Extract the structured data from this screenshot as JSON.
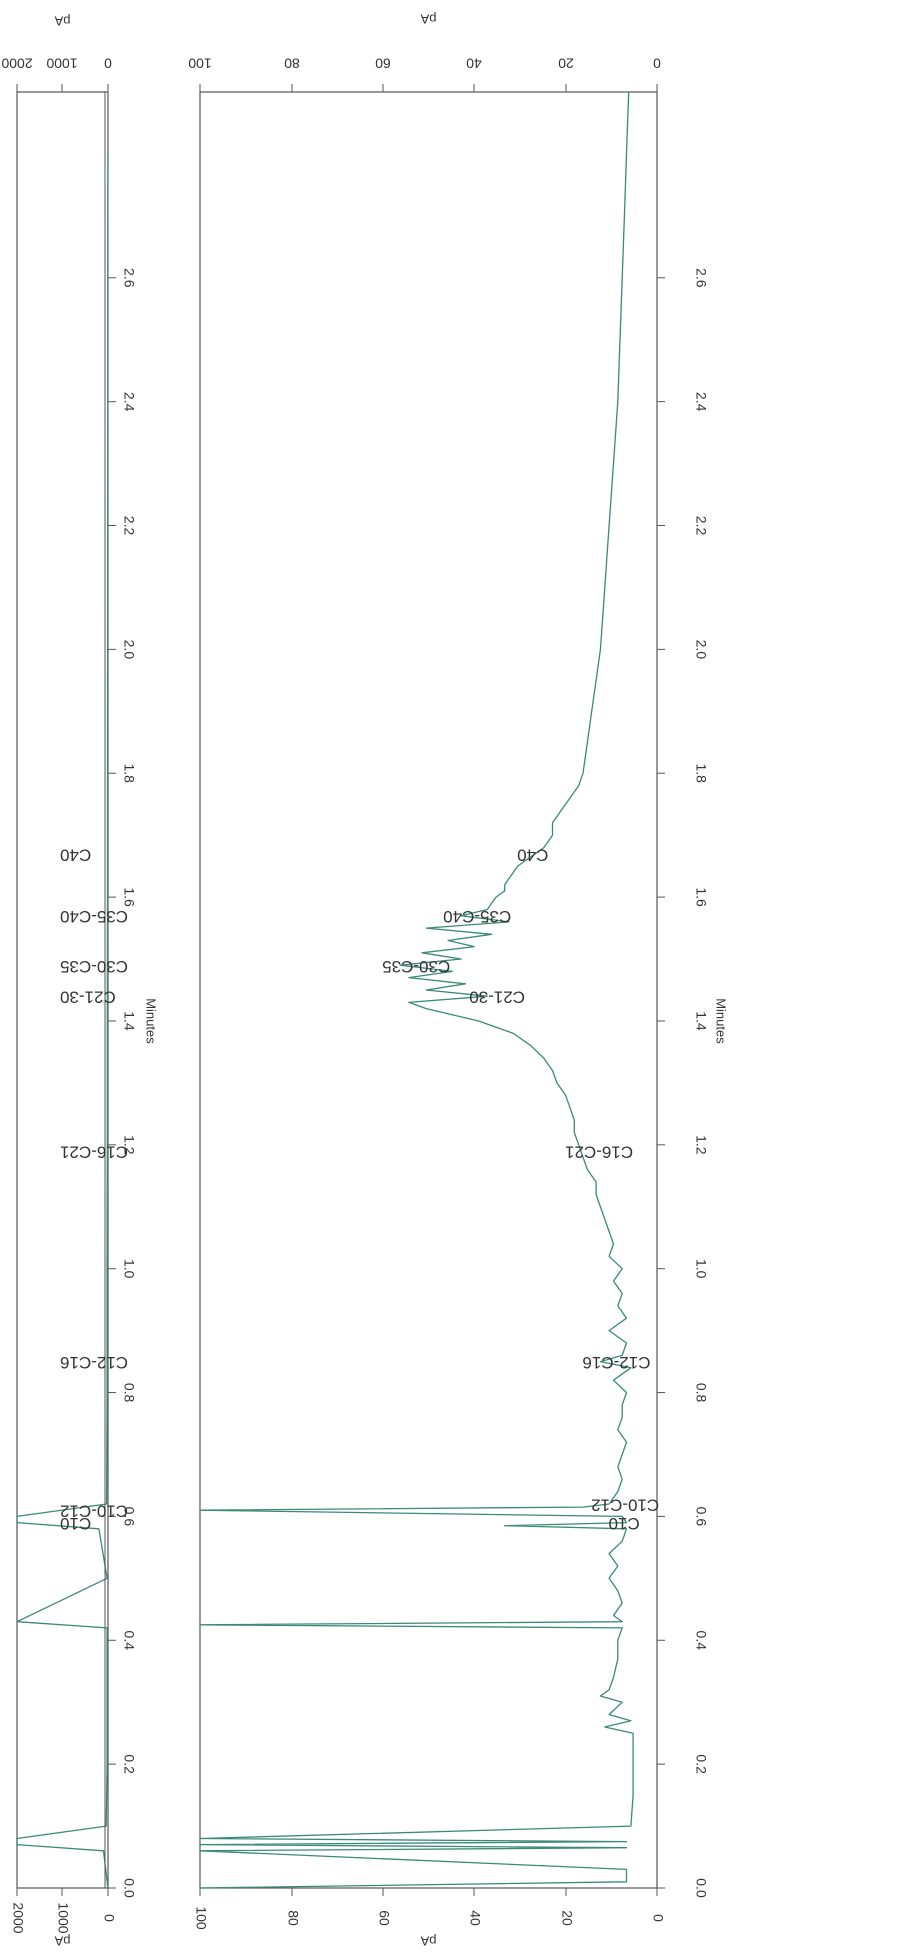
{
  "chart_data": [
    {
      "type": "line",
      "panel": "top",
      "orientation": "rotated 90°, time axis vertical",
      "x": [
        0.0,
        0.06,
        0.07,
        0.08,
        0.1,
        0.2,
        0.3,
        0.42,
        0.43,
        0.5,
        0.58,
        0.59,
        0.6,
        0.62,
        0.8,
        1.0,
        1.2,
        1.4,
        1.6,
        1.8,
        2.0,
        2.2,
        2.4,
        2.6,
        2.8
      ],
      "values": [
        2,
        100,
        2000,
        2000,
        40,
        20,
        20,
        20,
        2000,
        20,
        200,
        2000,
        2000,
        30,
        20,
        20,
        15,
        15,
        12,
        10,
        8,
        6,
        5,
        4,
        3
      ],
      "xlabel": "Minutes",
      "ylabel": "pA",
      "xlim": [
        0,
        2.9
      ],
      "ylim": [
        0,
        2000
      ],
      "xticks": [
        "0.0",
        "0.2",
        "0.4",
        "0.6",
        "0.8",
        "1.0",
        "1.2",
        "1.4",
        "1.6",
        "1.8",
        "2.0",
        "2.2",
        "2.4",
        "2.6"
      ],
      "yticks": [
        "0",
        "1000",
        "2000"
      ],
      "annotations": [
        {
          "text": "C10",
          "x": 0.59
        },
        {
          "text": "C10-C12",
          "x": 0.61
        },
        {
          "text": "C12-C16",
          "x": 0.85
        },
        {
          "text": "C16-C21",
          "x": 1.19
        },
        {
          "text": "C21-30",
          "x": 1.44
        },
        {
          "text": "C30-C35",
          "x": 1.49
        },
        {
          "text": "C35-C40",
          "x": 1.57
        },
        {
          "text": "C40",
          "x": 1.67
        }
      ]
    },
    {
      "type": "line",
      "panel": "bottom",
      "orientation": "rotated 90°, time axis vertical",
      "x": [
        0.0,
        0.01,
        0.03,
        0.06,
        0.065,
        0.07,
        0.075,
        0.08,
        0.1,
        0.15,
        0.2,
        0.25,
        0.26,
        0.27,
        0.28,
        0.3,
        0.31,
        0.32,
        0.34,
        0.37,
        0.4,
        0.42,
        0.425,
        0.43,
        0.44,
        0.46,
        0.48,
        0.5,
        0.52,
        0.54,
        0.56,
        0.58,
        0.585,
        0.59,
        0.6,
        0.61,
        0.615,
        0.62,
        0.64,
        0.66,
        0.68,
        0.7,
        0.72,
        0.74,
        0.76,
        0.78,
        0.8,
        0.82,
        0.84,
        0.85,
        0.86,
        0.88,
        0.9,
        0.92,
        0.94,
        0.96,
        0.98,
        1.0,
        1.02,
        1.04,
        1.06,
        1.08,
        1.1,
        1.12,
        1.14,
        1.16,
        1.18,
        1.2,
        1.22,
        1.24,
        1.26,
        1.28,
        1.3,
        1.32,
        1.34,
        1.36,
        1.38,
        1.4,
        1.42,
        1.43,
        1.44,
        1.45,
        1.46,
        1.47,
        1.48,
        1.49,
        1.5,
        1.51,
        1.52,
        1.53,
        1.54,
        1.55,
        1.56,
        1.57,
        1.58,
        1.59,
        1.6,
        1.61,
        1.62,
        1.63,
        1.64,
        1.65,
        1.66,
        1.67,
        1.68,
        1.69,
        1.7,
        1.72,
        1.74,
        1.76,
        1.78,
        1.8,
        1.85,
        1.9,
        1.95,
        2.0,
        2.1,
        2.2,
        2.3,
        2.4,
        2.5,
        2.6,
        2.7,
        2.8,
        2.9
      ],
      "values": [
        100,
        2,
        2,
        100,
        2,
        100,
        2,
        100,
        1,
        0.5,
        0.5,
        0.5,
        7,
        1,
        6,
        3,
        8,
        6,
        5,
        4,
        4,
        3,
        100,
        3,
        5,
        3,
        4,
        6,
        4,
        6,
        3,
        2,
        30,
        2,
        3,
        100,
        12,
        6,
        4,
        3,
        4,
        3,
        2,
        4,
        3,
        3,
        2,
        5,
        1,
        8,
        3,
        2,
        6,
        2,
        4,
        3,
        5,
        3,
        6,
        5,
        6,
        7,
        8,
        9,
        9,
        11,
        12,
        13,
        14,
        14,
        15,
        16,
        18,
        19,
        21,
        24,
        28,
        36,
        48,
        52,
        34,
        48,
        39,
        52,
        42,
        54,
        40,
        49,
        37,
        43,
        33,
        48,
        29,
        40,
        34,
        33,
        32,
        30,
        30,
        29,
        28,
        27,
        25,
        23,
        21,
        20,
        19,
        19,
        17,
        15,
        13,
        12,
        11,
        10,
        9,
        8,
        7,
        6,
        5,
        4,
        3.5,
        3,
        2.5,
        2,
        1.5
      ],
      "xlabel": "Minutes",
      "ylabel": "pA",
      "xlim": [
        0,
        2.9
      ],
      "ylim": [
        -5,
        100
      ],
      "xticks": [
        "0.0",
        "0.2",
        "0.4",
        "0.6",
        "0.8",
        "1.0",
        "1.2",
        "1.4",
        "1.6",
        "1.8",
        "2.0",
        "2.2",
        "2.4",
        "2.6"
      ],
      "yticks": [
        "0",
        "20",
        "40",
        "60",
        "80",
        "100"
      ],
      "annotations": [
        {
          "text": "C10",
          "x": 0.59
        },
        {
          "text": "C10-C12",
          "x": 0.62
        },
        {
          "text": "C12-C16",
          "x": 0.85
        },
        {
          "text": "C16-C21",
          "x": 1.19
        },
        {
          "text": "C21-30",
          "x": 1.44
        },
        {
          "text": "C30-C35",
          "x": 1.49
        },
        {
          "text": "C35-C40",
          "x": 1.57
        },
        {
          "text": "C40",
          "x": 1.67
        }
      ]
    }
  ],
  "colors": {
    "trace": "#3a8a78",
    "axis": "#555555",
    "text": "#333333"
  }
}
